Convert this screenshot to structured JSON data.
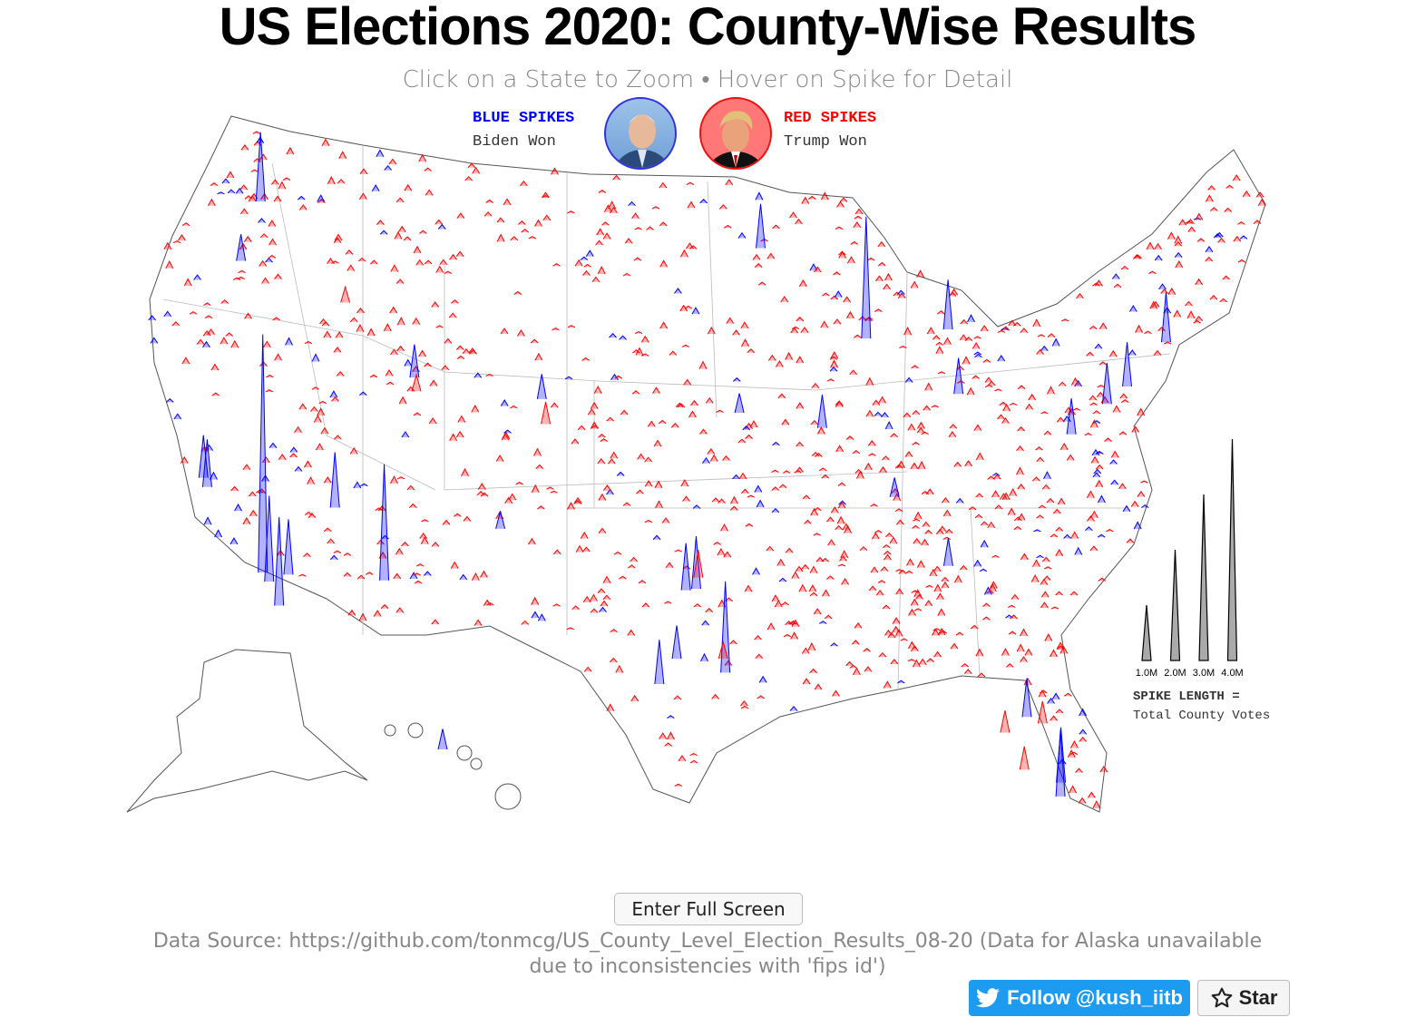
{
  "header": {
    "title": "US Elections 2020: County-Wise Results",
    "subtitle": "Click on a State to Zoom • Hover on Spike for Detail"
  },
  "legend": {
    "blue_title": "BLUE SPIKES",
    "blue_text": "Biden Won",
    "red_title": "RED SPIKES",
    "red_text": "Trump Won",
    "spike_title": "SPIKE LENGTH =",
    "spike_text": "Total County Votes",
    "scale": [
      {
        "votes_m": 1.0,
        "label": "1.0M"
      },
      {
        "votes_m": 2.0,
        "label": "2.0M"
      },
      {
        "votes_m": 3.0,
        "label": "3.0M"
      },
      {
        "votes_m": 4.0,
        "label": "4.0M"
      }
    ]
  },
  "colors": {
    "biden": "#0000ff",
    "trump": "#ff0000",
    "border": "#999999",
    "scale": "#aaaaaa"
  },
  "map": {
    "major_spikes": [
      {
        "lon": -118.2,
        "lat": 34.05,
        "votes_m": 4.3,
        "winner": "biden"
      },
      {
        "lon": -87.7,
        "lat": 41.85,
        "votes_m": 2.2,
        "winner": "biden"
      },
      {
        "lon": -112.1,
        "lat": 33.45,
        "votes_m": 2.1,
        "winner": "biden"
      },
      {
        "lon": -95.4,
        "lat": 29.8,
        "votes_m": 1.65,
        "winner": "biden"
      },
      {
        "lon": -117.1,
        "lat": 32.8,
        "votes_m": 1.6,
        "winner": "biden"
      },
      {
        "lon": -117.8,
        "lat": 33.7,
        "votes_m": 1.55,
        "winner": "biden"
      },
      {
        "lon": -115.1,
        "lat": 36.2,
        "votes_m": 1.0,
        "winner": "biden"
      },
      {
        "lon": -116.9,
        "lat": 33.9,
        "votes_m": 1.0,
        "winner": "biden"
      },
      {
        "lon": -96.8,
        "lat": 32.8,
        "votes_m": 0.95,
        "winner": "biden"
      },
      {
        "lon": -97.3,
        "lat": 32.75,
        "votes_m": 0.85,
        "winner": "biden"
      },
      {
        "lon": -122.3,
        "lat": 47.6,
        "votes_m": 1.25,
        "winner": "biden"
      },
      {
        "lon": -80.3,
        "lat": 25.7,
        "votes_m": 1.2,
        "winner": "biden"
      },
      {
        "lon": -80.2,
        "lat": 26.2,
        "votes_m": 1.0,
        "winner": "biden"
      },
      {
        "lon": -98.5,
        "lat": 29.4,
        "votes_m": 0.8,
        "winner": "biden"
      },
      {
        "lon": -83.2,
        "lat": 42.3,
        "votes_m": 0.9,
        "winner": "biden"
      },
      {
        "lon": -121.9,
        "lat": 37.35,
        "votes_m": 0.86,
        "winner": "biden"
      },
      {
        "lon": -122.2,
        "lat": 37.7,
        "votes_m": 0.77,
        "winner": "biden"
      },
      {
        "lon": -93.3,
        "lat": 45.0,
        "votes_m": 0.8,
        "winner": "biden"
      },
      {
        "lon": -75.15,
        "lat": 40.0,
        "votes_m": 0.74,
        "winner": "biden"
      },
      {
        "lon": -71.3,
        "lat": 42.45,
        "votes_m": 0.9,
        "winner": "biden"
      },
      {
        "lon": -73.9,
        "lat": 40.7,
        "votes_m": 0.8,
        "winner": "biden"
      },
      {
        "lon": -83.0,
        "lat": 40.0,
        "votes_m": 0.65,
        "winner": "biden"
      },
      {
        "lon": -97.7,
        "lat": 30.3,
        "votes_m": 0.6,
        "winner": "biden"
      },
      {
        "lon": -111.9,
        "lat": 40.7,
        "votes_m": 0.6,
        "winner": "biden"
      },
      {
        "lon": -105.0,
        "lat": 39.7,
        "votes_m": 0.45,
        "winner": "biden"
      },
      {
        "lon": -84.4,
        "lat": 33.8,
        "votes_m": 0.5,
        "winner": "biden"
      },
      {
        "lon": -86.8,
        "lat": 36.2,
        "votes_m": 0.35,
        "winner": "biden"
      },
      {
        "lon": -77.3,
        "lat": 38.8,
        "votes_m": 0.65,
        "winner": "biden"
      },
      {
        "lon": -81.4,
        "lat": 28.5,
        "votes_m": 0.7,
        "winner": "biden"
      },
      {
        "lon": -90.3,
        "lat": 38.6,
        "votes_m": 0.6,
        "winner": "biden"
      },
      {
        "lon": -94.6,
        "lat": 39.1,
        "votes_m": 0.35,
        "winner": "biden"
      },
      {
        "lon": -106.6,
        "lat": 35.1,
        "votes_m": 0.32,
        "winner": "biden"
      },
      {
        "lon": -122.7,
        "lat": 45.5,
        "votes_m": 0.48,
        "winner": "biden"
      },
      {
        "lon": -157.9,
        "lat": 21.4,
        "votes_m": 0.37,
        "winner": "biden"
      },
      {
        "lon": -96.7,
        "lat": 33.2,
        "votes_m": 0.5,
        "winner": "trump"
      },
      {
        "lon": -111.7,
        "lat": 40.2,
        "votes_m": 0.3,
        "winner": "trump"
      },
      {
        "lon": -81.8,
        "lat": 26.6,
        "votes_m": 0.42,
        "winner": "trump"
      },
      {
        "lon": -95.5,
        "lat": 30.3,
        "votes_m": 0.3,
        "winner": "trump"
      },
      {
        "lon": -104.7,
        "lat": 38.8,
        "votes_m": 0.4,
        "winner": "trump"
      },
      {
        "lon": -80.7,
        "lat": 28.3,
        "votes_m": 0.4,
        "winner": "trump"
      },
      {
        "lon": -116.3,
        "lat": 43.6,
        "votes_m": 0.28,
        "winner": "trump"
      },
      {
        "lon": -82.5,
        "lat": 27.9,
        "votes_m": 0.4,
        "winner": "trump"
      }
    ]
  },
  "footer": {
    "fullscreen_label": "Enter Full Screen",
    "source_line1": "Data Source: https://github.com/tonmcg/US_County_Level_Election_Results_08-20 (Data for Alaska unavailable",
    "source_line2": "due to inconsistencies with 'fips id')",
    "follow_label": "Follow @kush_iitb",
    "star_label": "Star"
  }
}
